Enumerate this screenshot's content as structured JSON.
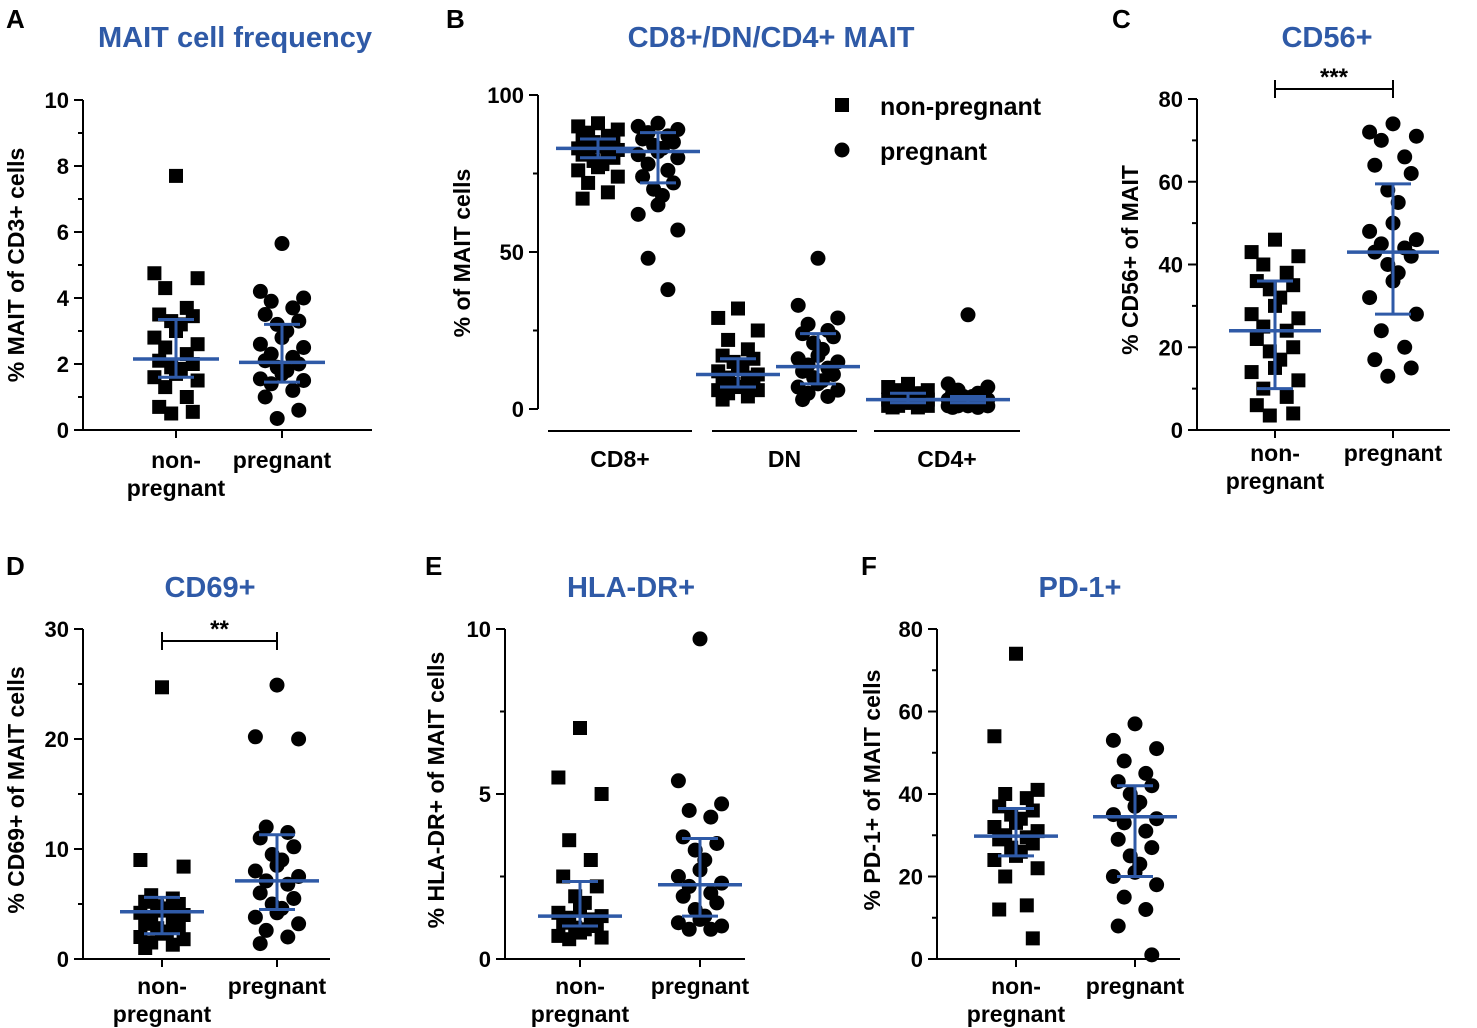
{
  "chart_data": [
    {
      "panel": "A",
      "type": "scatter",
      "title": "MAIT cell frequency",
      "ylabel": "% MAIT of CD3+ cells",
      "ylim": [
        0,
        10
      ],
      "yticks": [
        "0",
        "2",
        "4",
        "6",
        "8",
        "10"
      ],
      "categories": [
        [
          "non-",
          "pregnant"
        ],
        [
          "pregnant"
        ]
      ],
      "series": [
        {
          "name": "non-pregnant",
          "marker": "square",
          "median": 2.15,
          "iqr": [
            1.6,
            3.35
          ],
          "values": [
            7.7,
            4.75,
            4.6,
            4.3,
            3.7,
            3.5,
            3.45,
            3.3,
            3.2,
            3.0,
            2.8,
            2.6,
            2.5,
            2.3,
            2.1,
            2.0,
            1.9,
            1.85,
            1.7,
            1.6,
            1.5,
            1.3,
            1.0,
            0.7,
            0.55,
            0.5
          ]
        },
        {
          "name": "pregnant",
          "marker": "circle",
          "median": 2.05,
          "iqr": [
            1.45,
            3.2
          ],
          "values": [
            5.65,
            4.2,
            4.0,
            3.9,
            3.7,
            3.5,
            3.3,
            3.2,
            3.0,
            2.8,
            2.6,
            2.5,
            2.3,
            2.2,
            2.1,
            2.0,
            1.9,
            1.8,
            1.7,
            1.55,
            1.5,
            1.4,
            1.2,
            1.0,
            0.6,
            0.35
          ]
        }
      ]
    },
    {
      "panel": "B",
      "type": "scatter",
      "title": "CD8+/DN/CD4+ MAIT",
      "ylabel": "% of MAIT cells",
      "ylim": [
        0,
        100
      ],
      "yticks": [
        "0",
        "50",
        "100"
      ],
      "categories": [
        "CD8+",
        "DN",
        "CD4+"
      ],
      "legend": [
        "non-pregnant",
        "pregnant"
      ],
      "series": [
        {
          "name": "CD8+ non-pregnant",
          "marker": "square",
          "median": 83,
          "iqr": [
            80,
            86
          ],
          "values": [
            91,
            90,
            89,
            88,
            87,
            86,
            85.5,
            85,
            84,
            83.5,
            83,
            82.5,
            82,
            81.5,
            81,
            80,
            79,
            78,
            77,
            76,
            74,
            72,
            69,
            67
          ]
        },
        {
          "name": "CD8+ pregnant",
          "marker": "circle",
          "median": 82,
          "iqr": [
            72,
            88
          ],
          "values": [
            91,
            90,
            89,
            88,
            87,
            86,
            85,
            84,
            83,
            82,
            81,
            80,
            78,
            76,
            74,
            72,
            70,
            68,
            65,
            62,
            57,
            48,
            38
          ]
        },
        {
          "name": "DN non-pregnant",
          "marker": "square",
          "median": 11,
          "iqr": [
            7,
            16
          ],
          "values": [
            32,
            29,
            25,
            22,
            19,
            17,
            16,
            15,
            14,
            13,
            12,
            11,
            10,
            10,
            9,
            8,
            8,
            7,
            7,
            6,
            6,
            5,
            4,
            3
          ]
        },
        {
          "name": "DN pregnant",
          "marker": "circle",
          "median": 13.5,
          "iqr": [
            8,
            24
          ],
          "values": [
            48,
            33,
            29,
            27,
            25,
            24,
            23,
            21,
            19,
            17,
            16,
            15,
            14,
            13,
            12,
            11,
            10,
            9,
            8,
            7,
            6,
            5,
            4,
            3
          ]
        },
        {
          "name": "CD4+ non-pregnant",
          "marker": "square",
          "median": 3,
          "iqr": [
            2,
            5
          ],
          "values": [
            8,
            7,
            6,
            6,
            5,
            5,
            5,
            4,
            4,
            4,
            3,
            3,
            3,
            3,
            3,
            2,
            2,
            2,
            2,
            1,
            1,
            1,
            0.5,
            0.5
          ]
        },
        {
          "name": "CD4+ pregnant",
          "marker": "circle",
          "median": 3,
          "iqr": [
            2,
            4
          ],
          "values": [
            30,
            8,
            7,
            6,
            5,
            5,
            4,
            4,
            4,
            3,
            3,
            3,
            3,
            3,
            2,
            2,
            2,
            2,
            1,
            1,
            1,
            1,
            0.5,
            0.5
          ]
        }
      ]
    },
    {
      "panel": "C",
      "type": "scatter",
      "title": "CD56+",
      "ylabel": "% CD56+ of MAIT",
      "ylim": [
        0,
        80
      ],
      "yticks": [
        "0",
        "20",
        "40",
        "60",
        "80"
      ],
      "categories": [
        [
          "non-",
          "pregnant"
        ],
        [
          "pregnant"
        ]
      ],
      "significance": "***",
      "series": [
        {
          "name": "non-pregnant",
          "marker": "square",
          "median": 24,
          "iqr": [
            10,
            36
          ],
          "values": [
            46,
            43,
            42,
            40,
            38,
            36,
            35,
            34,
            32,
            30,
            28,
            27,
            25,
            24,
            22,
            20,
            19,
            17,
            15,
            14,
            12,
            10,
            8,
            6,
            4,
            3.5
          ]
        },
        {
          "name": "pregnant",
          "marker": "circle",
          "median": 43,
          "iqr": [
            28,
            59.5
          ],
          "values": [
            74,
            72,
            71,
            70,
            66,
            64,
            62,
            58,
            55,
            50,
            48,
            46,
            45,
            44,
            43,
            42,
            40,
            38,
            36,
            32,
            28,
            24,
            20,
            17,
            15,
            13
          ]
        }
      ]
    },
    {
      "panel": "D",
      "type": "scatter",
      "title": "CD69+",
      "ylabel": "% CD69+ of MAIT cells",
      "ylim": [
        0,
        30
      ],
      "yticks": [
        "0",
        "10",
        "20",
        "30"
      ],
      "categories": [
        [
          "non-",
          "pregnant"
        ],
        [
          "pregnant"
        ]
      ],
      "significance": "**",
      "series": [
        {
          "name": "non-pregnant",
          "marker": "square",
          "median": 4.3,
          "iqr": [
            2.3,
            5.6
          ],
          "values": [
            24.7,
            9.0,
            8.4,
            5.8,
            5.5,
            5.2,
            5.0,
            4.8,
            4.6,
            4.4,
            4.2,
            4.0,
            3.8,
            3.5,
            3.2,
            3.0,
            2.8,
            2.5,
            2.3,
            2.0,
            1.8,
            1.5,
            1.3,
            1.0
          ]
        },
        {
          "name": "pregnant",
          "marker": "circle",
          "median": 7.1,
          "iqr": [
            4.5,
            11.3
          ],
          "values": [
            24.9,
            20.2,
            20.0,
            12.0,
            11.5,
            11.0,
            10.2,
            9.5,
            9.0,
            8.5,
            8.0,
            7.5,
            7.1,
            6.8,
            6.0,
            5.5,
            5.0,
            4.6,
            4.2,
            3.8,
            3.2,
            2.6,
            2.0,
            1.4
          ]
        }
      ]
    },
    {
      "panel": "E",
      "type": "scatter",
      "title": "HLA-DR+",
      "ylabel": "% HLA-DR+ of MAIT cells",
      "ylim": [
        0,
        10
      ],
      "yticks": [
        "0",
        "5",
        "10"
      ],
      "categories": [
        [
          "non-",
          "pregnant"
        ],
        [
          "pregnant"
        ]
      ],
      "series": [
        {
          "name": "non-pregnant",
          "marker": "square",
          "median": 1.3,
          "iqr": [
            1.0,
            2.35
          ],
          "values": [
            7.0,
            5.5,
            5.0,
            3.6,
            3.0,
            2.5,
            2.2,
            1.9,
            1.7,
            1.5,
            1.4,
            1.3,
            1.25,
            1.2,
            1.1,
            1.0,
            0.95,
            0.9,
            0.8,
            0.7,
            0.65,
            0.6
          ]
        },
        {
          "name": "pregnant",
          "marker": "circle",
          "median": 2.25,
          "iqr": [
            1.3,
            3.65
          ],
          "values": [
            9.7,
            5.4,
            4.7,
            4.5,
            4.3,
            3.7,
            3.5,
            3.3,
            3.0,
            2.7,
            2.5,
            2.3,
            2.2,
            2.0,
            1.9,
            1.7,
            1.5,
            1.3,
            1.2,
            1.1,
            1.0,
            0.9,
            0.9
          ]
        }
      ]
    },
    {
      "panel": "F",
      "type": "scatter",
      "title": "PD-1+",
      "ylabel": "% PD-1+ of MAIT cells",
      "ylim": [
        0,
        80
      ],
      "yticks": [
        "0",
        "20",
        "40",
        "60",
        "80"
      ],
      "categories": [
        [
          "non-",
          "pregnant"
        ],
        [
          "pregnant"
        ]
      ],
      "series": [
        {
          "name": "non-pregnant",
          "marker": "square",
          "median": 29.8,
          "iqr": [
            25,
            36.5
          ],
          "values": [
            74,
            54,
            41,
            40,
            39,
            37,
            36,
            35,
            34,
            33,
            32,
            31,
            30,
            29.5,
            29,
            28,
            27,
            26,
            25,
            24,
            22,
            20,
            13,
            12,
            5
          ]
        },
        {
          "name": "pregnant",
          "marker": "circle",
          "median": 34.5,
          "iqr": [
            20,
            42
          ],
          "values": [
            57,
            53,
            51,
            48,
            45,
            43,
            42,
            40,
            38,
            37,
            35,
            34,
            33,
            31,
            29,
            27,
            25,
            23,
            21,
            20,
            18,
            15,
            12,
            8,
            1
          ]
        }
      ]
    }
  ],
  "panel_letters": [
    "A",
    "B",
    "C",
    "D",
    "E",
    "F"
  ],
  "colors": {
    "median_bar": "#2f5aa7",
    "title": "#2f5aa7",
    "marker": "#000000"
  }
}
